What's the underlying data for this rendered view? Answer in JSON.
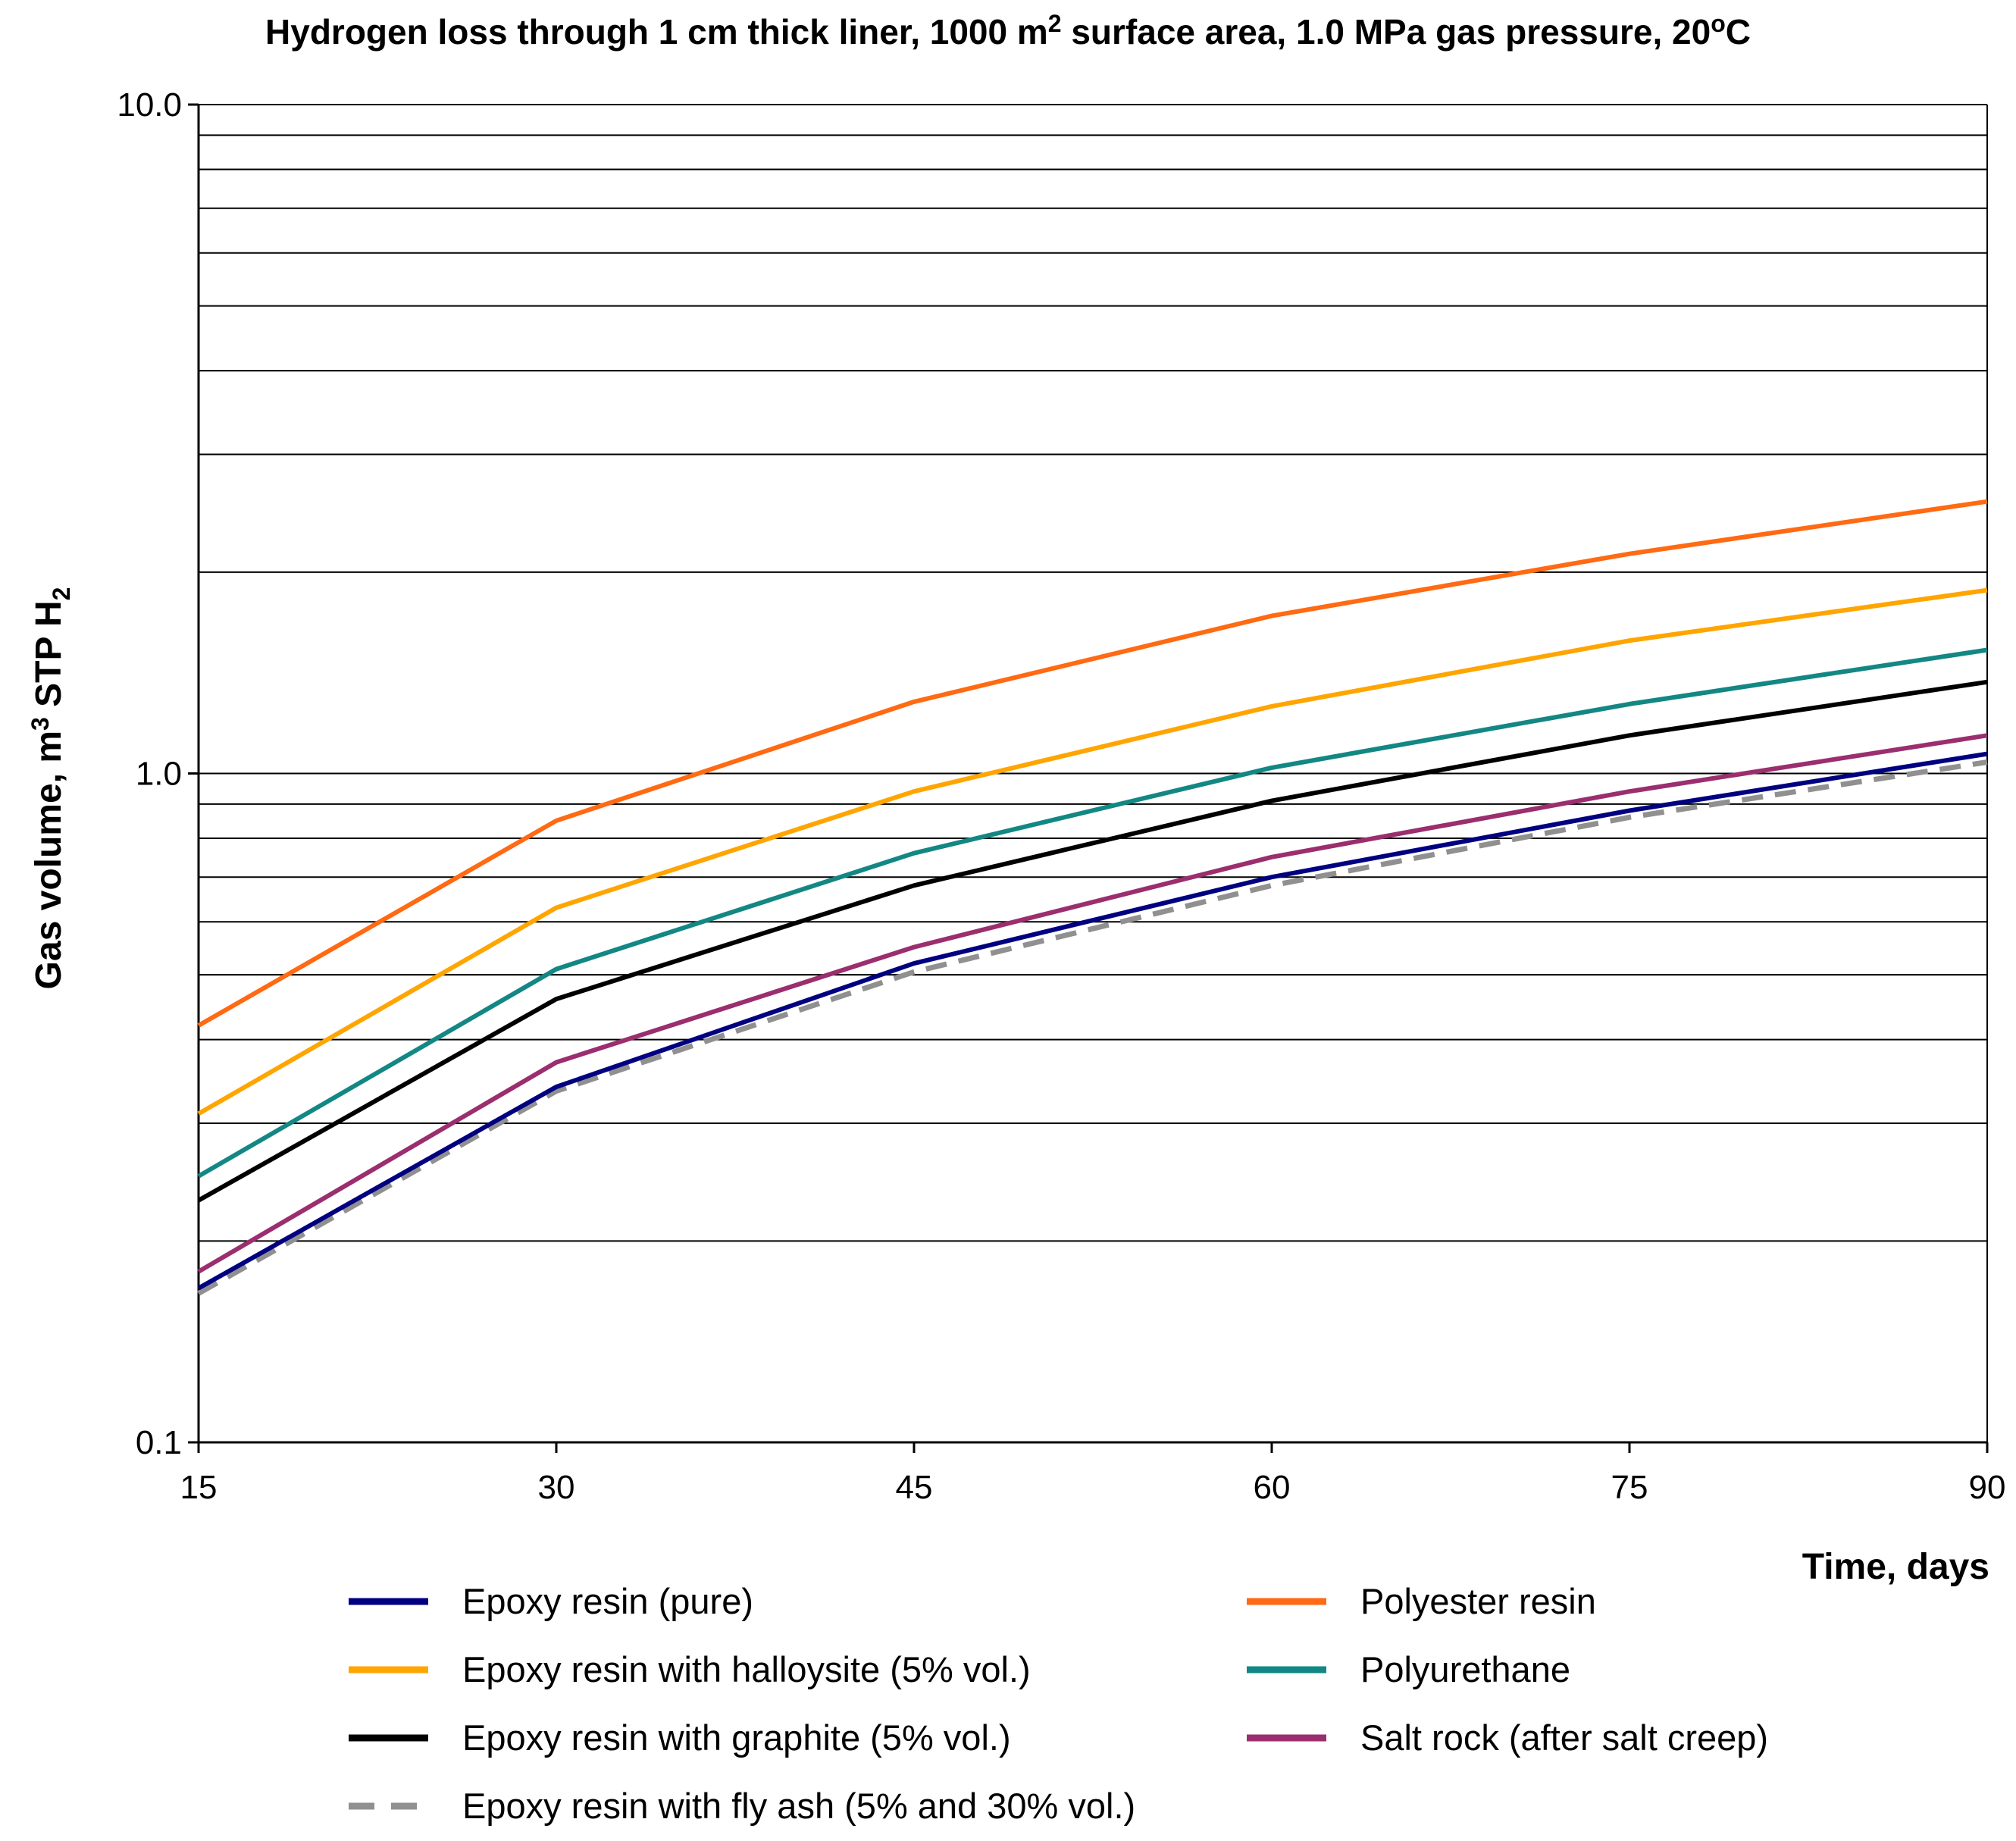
{
  "chart_data": {
    "type": "line",
    "title": {
      "main": "Hydrogen loss through 1 cm thick liner, 1000 m",
      "main_sup": "2",
      "middle": " surface area, 1.0 MPa gas pressure, 20",
      "degree_sup": "o",
      "end": "C"
    },
    "xlabel": "Time, days",
    "ylabel": {
      "pre": "Gas volume,  m",
      "sup": "3",
      "mid": " STP H",
      "sub": "2"
    },
    "y_scale": "log",
    "ylim": [
      0.1,
      10.0
    ],
    "xlim": [
      15,
      90
    ],
    "x_ticks": [
      "15",
      "30",
      "45",
      "60",
      "75",
      "90"
    ],
    "y_ticks": [
      "0.1",
      "1.0",
      "10.0"
    ],
    "x": [
      15,
      30,
      45,
      60,
      75,
      90
    ],
    "series": [
      {
        "name": "Epoxy resin (pure)",
        "color": "#000080",
        "dash": false,
        "values": [
          0.17,
          0.34,
          0.52,
          0.7,
          0.88,
          1.07
        ]
      },
      {
        "name": "Polyester resin",
        "color": "#FF6A13",
        "dash": false,
        "values": [
          0.42,
          0.85,
          1.28,
          1.72,
          2.13,
          2.55
        ]
      },
      {
        "name": "Epoxy resin with halloysite (5% vol.)",
        "color": "#FFA500",
        "dash": false,
        "values": [
          0.31,
          0.63,
          0.94,
          1.26,
          1.58,
          1.88
        ]
      },
      {
        "name": "Polyurethane",
        "color": "#138783",
        "dash": false,
        "values": [
          0.25,
          0.51,
          0.76,
          1.02,
          1.27,
          1.53
        ]
      },
      {
        "name": "Epoxy resin with graphite (5% vol.)",
        "color": "#000000",
        "dash": false,
        "values": [
          0.23,
          0.46,
          0.68,
          0.91,
          1.14,
          1.37
        ]
      },
      {
        "name": "Salt rock (after salt creep)",
        "color": "#9B2E6E",
        "dash": false,
        "values": [
          0.18,
          0.37,
          0.55,
          0.75,
          0.94,
          1.14
        ]
      },
      {
        "name": "Epoxy resin with fly ash (5% and 30% vol.)",
        "color": "#909090",
        "dash": true,
        "values": [
          0.167,
          0.335,
          0.505,
          0.68,
          0.86,
          1.04
        ]
      }
    ],
    "legend_position": "bottom"
  }
}
